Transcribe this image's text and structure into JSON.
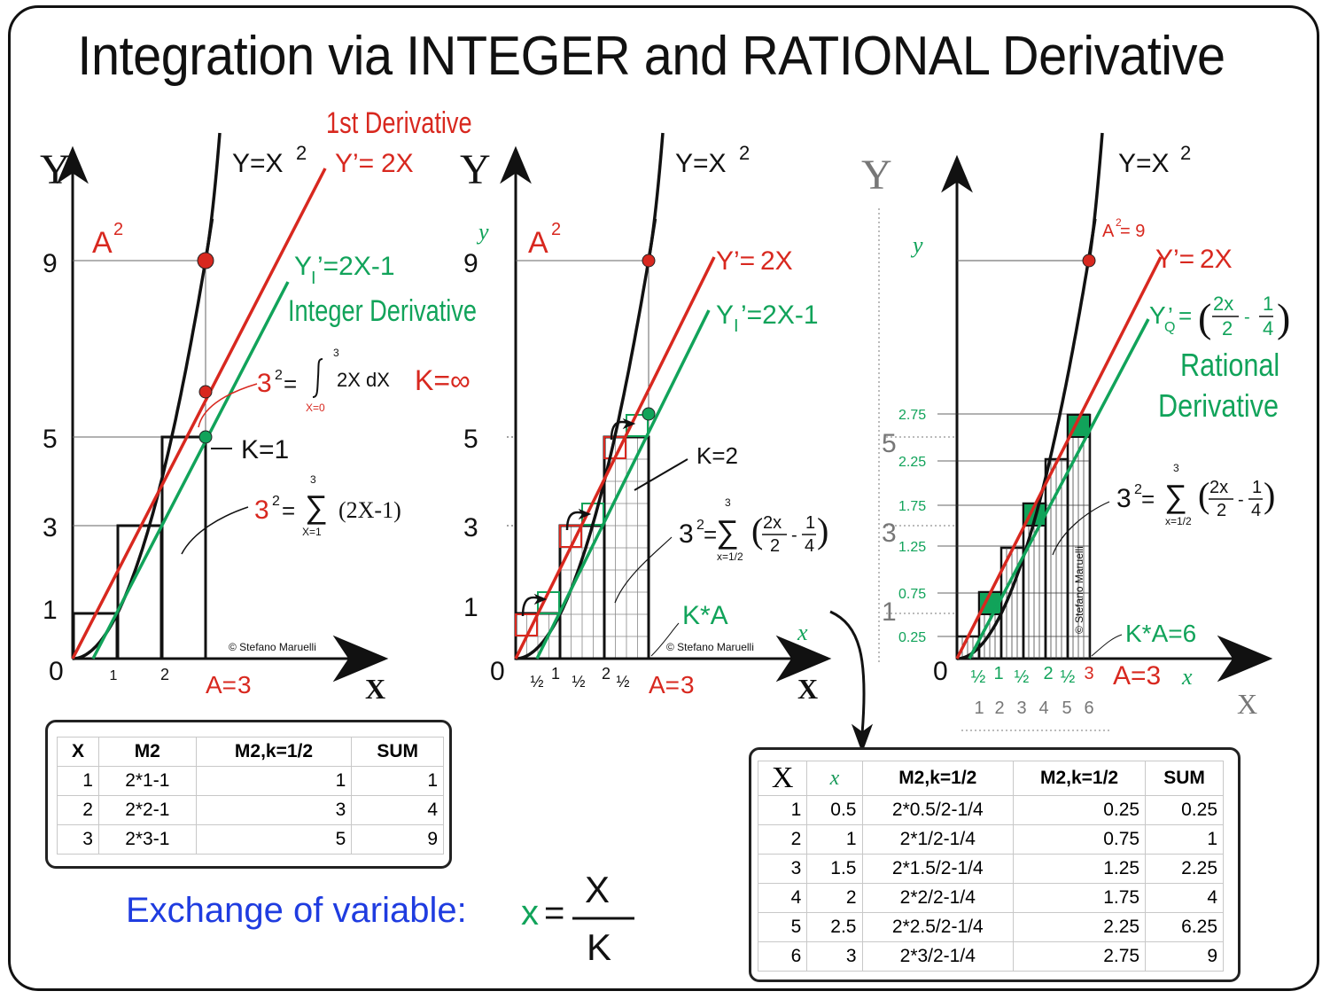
{
  "title": "Integration via INTEGER and RATIONAL Derivative",
  "colors": {
    "red": "#d8281f",
    "green": "#11a35a",
    "black": "#111111",
    "blue": "#1f3ce0",
    "gray": "#777777"
  },
  "panel1": {
    "y_axis": "Y",
    "x_axis": "X",
    "curve": "Y=X",
    "curve_exp": "2",
    "red_label": "1st Derivative",
    "red_eq_a": "Y’=",
    "red_eq_b": "2X",
    "green_eq_a": "Y",
    "green_sub": "I",
    "green_eq_b": "’=2X-1",
    "green_label": "Integer Derivative",
    "a2": "A",
    "a2_exp": "2",
    "yticks": [
      "9",
      "5",
      "3",
      "1",
      "0"
    ],
    "xticks": [
      "1",
      "2"
    ],
    "a_eq": "A=",
    "a_val": "3",
    "int_base": "3",
    "int_exp": "2",
    "int_eq": "=",
    "int_upper": "3",
    "int_body": "2X dX",
    "int_lower": "X=0",
    "k_inf": "K=∞",
    "k1": "K=1",
    "sum_base": "3",
    "sum_exp": "2",
    "sum_eq": "=",
    "sum_upper": "3",
    "sum_body": "(2X-1)",
    "sum_lower": "X=1",
    "credit": "© Stefano Maruelli"
  },
  "panel2": {
    "y_axis": "Y",
    "y_small": "y",
    "x_axis": "X",
    "x_small": "x",
    "curve": "Y=X",
    "curve_exp": "2",
    "red_eq_a": "Y’=",
    "red_eq_b": "2X",
    "green_eq_a": "Y",
    "green_sub": "I",
    "green_eq_b": "’=2X-1",
    "a2": "A",
    "a2_exp": "2",
    "yticks": [
      "9",
      "5",
      "3",
      "1",
      "0"
    ],
    "xticks": [
      "½",
      "1",
      "½",
      "2",
      "½"
    ],
    "a_eq": "A=",
    "a_val": "3",
    "k2": "K=2",
    "sum_base": "3",
    "sum_exp": "2",
    "sum_eq": "=",
    "sum_upper": "3",
    "sum_lower": "x=1/2",
    "frac1_num": "2x",
    "frac1_den": "2",
    "minus": "-",
    "frac2_num": "1",
    "frac2_den": "4",
    "ka": "K*A",
    "credit": "© Stefano Maruelli"
  },
  "panel3": {
    "y_axis": "Y",
    "y_small": "y",
    "x_axis": "X",
    "x_small": "x",
    "curve": "Y=X",
    "curve_exp": "2",
    "a2": "A",
    "a2_exp": "2",
    "a2_val": "= 9",
    "red_eq_a": "Y’=",
    "red_eq_b": "2X",
    "green_eq_a": "Y",
    "green_sub": "Q",
    "green_eq_b": "’ =",
    "frac1_num": "2x",
    "frac1_den": "2",
    "minus": "-",
    "frac2_num": "1",
    "frac2_den": "4",
    "rational1": "Rational",
    "rational2": "Derivative",
    "y_big_ticks": [
      "5",
      "3",
      "1",
      "0"
    ],
    "y_small_ticks": [
      "2.75",
      "2.25",
      "1.75",
      "1.25",
      "0.75",
      "0.25"
    ],
    "x_small_ticks": [
      "½",
      "1",
      "½",
      "2",
      "½",
      "3"
    ],
    "x_big_ticks": [
      "1",
      "2",
      "3",
      "4",
      "5",
      "6"
    ],
    "a_eq": "A=3",
    "ka": "K*A=6",
    "sum_base": "3",
    "sum_exp": "2",
    "sum_eq": "=",
    "sum_upper": "3",
    "sum_lower": "x=1/2",
    "credit": "© Stefano Maruelli"
  },
  "table1": {
    "headers": [
      "X",
      "M2",
      "M2,k=1/2",
      "SUM"
    ],
    "rows": [
      [
        "1",
        "2*1-1",
        "1",
        "1"
      ],
      [
        "2",
        "2*2-1",
        "3",
        "4"
      ],
      [
        "3",
        "2*3-1",
        "5",
        "9"
      ]
    ]
  },
  "table2": {
    "headers": [
      "X",
      "x",
      "M2,k=1/2",
      "M2,k=1/2",
      "SUM"
    ],
    "rows": [
      [
        "1",
        "0.5",
        "2*0.5/2-1/4",
        "0.25",
        "0.25"
      ],
      [
        "2",
        "1",
        "2*1/2-1/4",
        "0.75",
        "1"
      ],
      [
        "3",
        "1.5",
        "2*1.5/2-1/4",
        "1.25",
        "2.25"
      ],
      [
        "4",
        "2",
        "2*2/2-1/4",
        "1.75",
        "4"
      ],
      [
        "5",
        "2.5",
        "2*2.5/2-1/4",
        "2.25",
        "6.25"
      ],
      [
        "6",
        "3",
        "2*3/2-1/4",
        "2.75",
        "9"
      ]
    ]
  },
  "exchange": {
    "label": "Exchange of variable:",
    "lhs": "x",
    "eq": "=",
    "num": "X",
    "den": "K"
  }
}
